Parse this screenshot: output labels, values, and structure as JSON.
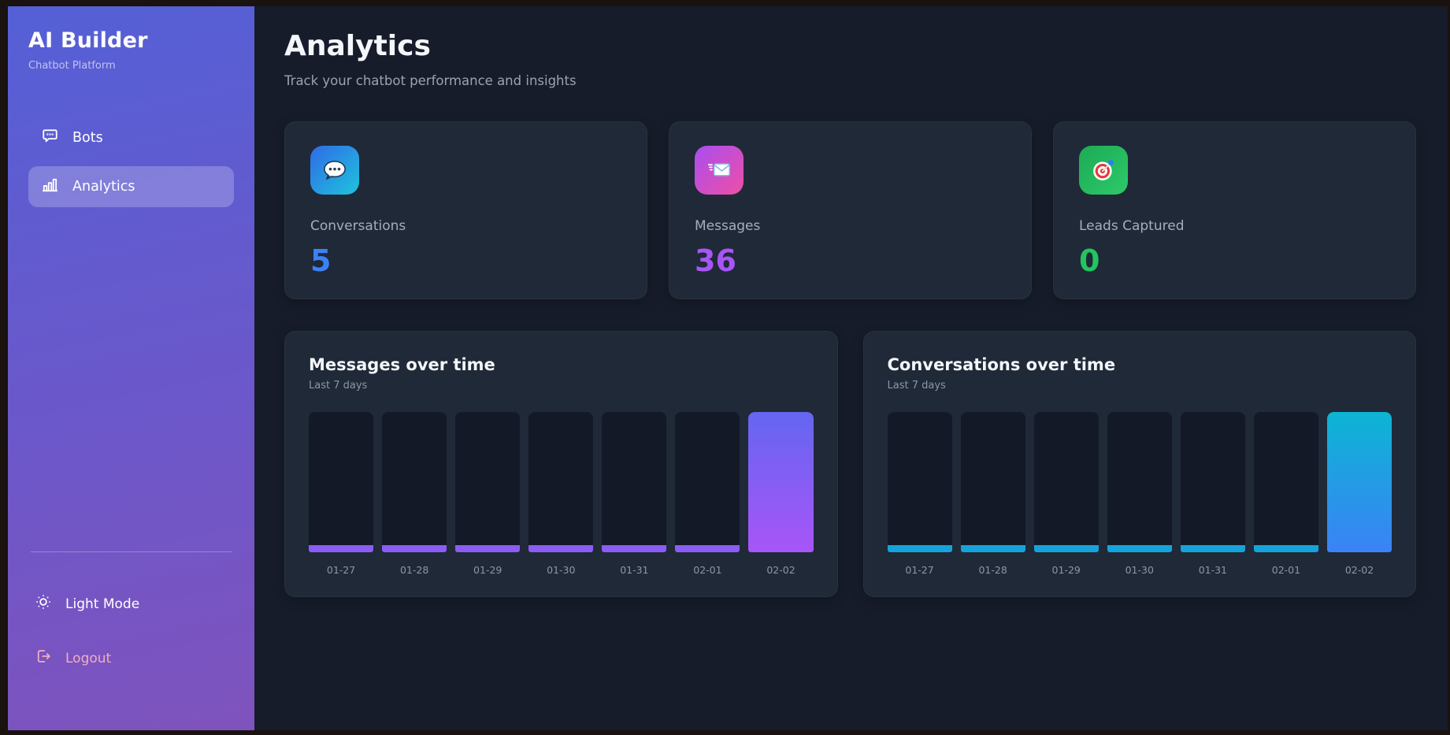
{
  "sidebar": {
    "title": "AI Builder",
    "subtitle": "Chatbot Platform",
    "nav": [
      {
        "label": "Bots",
        "icon": "chat-bubble-icon",
        "active": false
      },
      {
        "label": "Analytics",
        "icon": "bar-chart-icon",
        "active": true
      }
    ],
    "footer": [
      {
        "label": "Light Mode",
        "icon": "sun-icon"
      },
      {
        "label": "Logout",
        "icon": "logout-icon"
      }
    ]
  },
  "header": {
    "title": "Analytics",
    "subtitle": "Track your chatbot performance and insights"
  },
  "stats": [
    {
      "label": "Conversations",
      "value": "5",
      "icon": "speech-balloon-icon",
      "value_color": "#3b82f6",
      "icon_gradient": [
        "#2f6ae6",
        "#1fc3de"
      ]
    },
    {
      "label": "Messages",
      "value": "36",
      "icon": "incoming-envelope-icon",
      "value_color": "#a855f7",
      "icon_gradient": [
        "#a94ef0",
        "#ee4fa5"
      ]
    },
    {
      "label": "Leads Captured",
      "value": "0",
      "icon": "target-icon",
      "value_color": "#22c55e",
      "icon_gradient": [
        "#1cab55",
        "#2dc969"
      ]
    }
  ],
  "chart_data": [
    {
      "type": "bar",
      "title": "Messages over time",
      "subtitle": "Last 7 days",
      "categories": [
        "01-27",
        "01-28",
        "01-29",
        "01-30",
        "01-31",
        "02-01",
        "02-02"
      ],
      "values": [
        0,
        0,
        0,
        0,
        0,
        0,
        36
      ],
      "ylim": [
        0,
        36
      ],
      "xlabel": "",
      "ylabel": "",
      "grid": false,
      "legend": "none",
      "bar_gradient": [
        "#6466f1",
        "#a855f7"
      ],
      "zero_bar_color": "#8b5cf6",
      "track_color": "#131927"
    },
    {
      "type": "bar",
      "title": "Conversations over time",
      "subtitle": "Last 7 days",
      "categories": [
        "01-27",
        "01-28",
        "01-29",
        "01-30",
        "01-31",
        "02-01",
        "02-02"
      ],
      "values": [
        0,
        0,
        0,
        0,
        0,
        0,
        5
      ],
      "ylim": [
        0,
        5
      ],
      "xlabel": "",
      "ylabel": "",
      "grid": false,
      "legend": "none",
      "bar_gradient": [
        "#0cb5d3",
        "#3b82f6"
      ],
      "zero_bar_color": "#16a3dc",
      "track_color": "#131927"
    }
  ]
}
